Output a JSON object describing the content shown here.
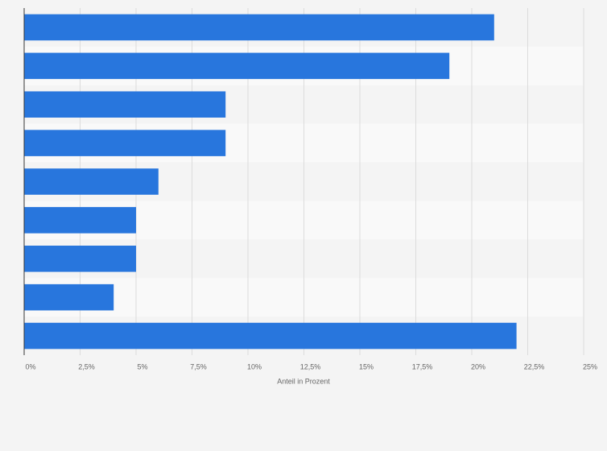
{
  "chart_data": {
    "type": "bar",
    "orientation": "horizontal",
    "x_label": "Anteil in Prozent",
    "categories": [
      null,
      null,
      null,
      null,
      null,
      null,
      null,
      null,
      null
    ],
    "values": [
      21,
      19,
      9,
      9,
      6,
      5,
      5,
      4,
      22
    ],
    "color": "#2876dd",
    "xlim": [
      0,
      25
    ],
    "xticks": [
      {
        "value": 0,
        "label": "0%"
      },
      {
        "value": 2.5,
        "label": "2,5%"
      },
      {
        "value": 5,
        "label": "5%"
      },
      {
        "value": 7.5,
        "label": "7,5%"
      },
      {
        "value": 10,
        "label": "10%"
      },
      {
        "value": 12.5,
        "label": "12,5%"
      },
      {
        "value": 15,
        "label": "15%"
      },
      {
        "value": 17.5,
        "label": "17,5%"
      },
      {
        "value": 20,
        "label": "20%"
      },
      {
        "value": 22.5,
        "label": "22,5%"
      },
      {
        "value": 25,
        "label": "25%"
      }
    ],
    "grid": true
  }
}
